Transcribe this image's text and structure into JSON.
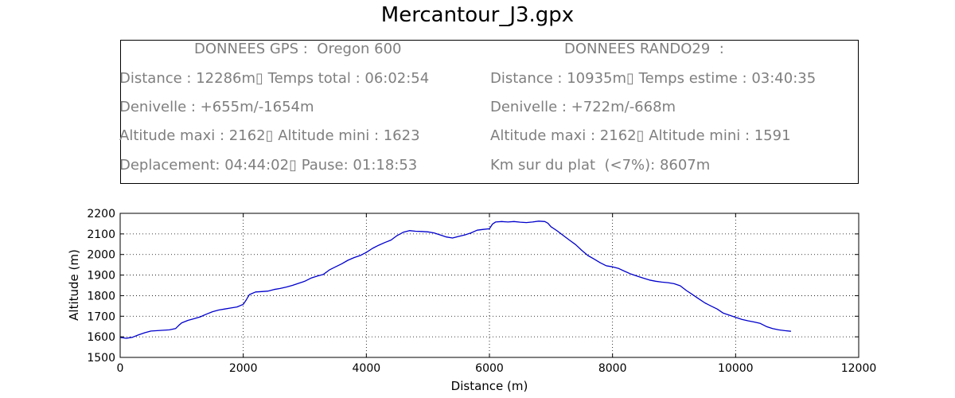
{
  "title": "Mercantour_J3.gpx",
  "info_box": {
    "gps": {
      "header": "DONNEES GPS :  Oregon 600",
      "lines": [
        "Distance : 12286m▯ Temps total : 06:02:54",
        "Denivelle : +655m/-1654m",
        "Altitude maxi : 2162▯ Altitude mini : 1623",
        "Deplacement: 04:44:02▯ Pause: 01:18:53"
      ]
    },
    "rando": {
      "header": "DONNEES RANDO29  :",
      "lines": [
        "Distance : 10935m▯ Temps estime : 03:40:35",
        "Denivelle : +722m/-668m",
        "Altitude maxi : 2162▯ Altitude mini : 1591",
        "Km sur du plat  (<7%): 8607m"
      ]
    }
  },
  "chart_data": {
    "type": "line",
    "xlabel": "Distance (m)",
    "ylabel": "Altitude (m)",
    "xlim": [
      0,
      12000
    ],
    "ylim": [
      1500,
      2200
    ],
    "xticks": [
      0,
      2000,
      4000,
      6000,
      8000,
      10000,
      12000
    ],
    "yticks": [
      1500,
      1600,
      1700,
      1800,
      1900,
      2000,
      2100,
      2200
    ],
    "grid": true,
    "line_color": "#0000cc",
    "series": [
      {
        "x": [
          0,
          100,
          200,
          300,
          400,
          500,
          600,
          700,
          800,
          900,
          950,
          1000,
          1100,
          1200,
          1300,
          1400,
          1500,
          1600,
          1700,
          1800,
          1900,
          2000,
          2050,
          2100,
          2200,
          2300,
          2400,
          2500,
          2600,
          2700,
          2800,
          2900,
          3000,
          3100,
          3200,
          3300,
          3400,
          3500,
          3600,
          3700,
          3800,
          3900,
          4000,
          4100,
          4200,
          4300,
          4400,
          4500,
          4600,
          4700,
          4800,
          4900,
          5000,
          5100,
          5200,
          5300,
          5400,
          5500,
          5600,
          5700,
          5800,
          5900,
          6000,
          6050,
          6100,
          6200,
          6300,
          6400,
          6500,
          6600,
          6700,
          6800,
          6900,
          6950,
          7000,
          7100,
          7200,
          7300,
          7400,
          7500,
          7600,
          7700,
          7800,
          7900,
          8000,
          8100,
          8200,
          8300,
          8400,
          8500,
          8600,
          8700,
          8800,
          8900,
          9000,
          9100,
          9200,
          9300,
          9400,
          9500,
          9600,
          9700,
          9800,
          9900,
          10000,
          10100,
          10200,
          10300,
          10400,
          10500,
          10600,
          10700,
          10800,
          10900
        ],
        "y": [
          1597,
          1593,
          1598,
          1610,
          1620,
          1628,
          1630,
          1632,
          1634,
          1640,
          1655,
          1668,
          1680,
          1688,
          1697,
          1710,
          1722,
          1730,
          1735,
          1740,
          1745,
          1758,
          1780,
          1805,
          1818,
          1820,
          1822,
          1830,
          1835,
          1842,
          1850,
          1860,
          1870,
          1885,
          1895,
          1903,
          1925,
          1940,
          1955,
          1972,
          1985,
          1995,
          2010,
          2030,
          2045,
          2058,
          2070,
          2092,
          2108,
          2116,
          2113,
          2112,
          2110,
          2105,
          2095,
          2085,
          2080,
          2088,
          2095,
          2105,
          2118,
          2122,
          2125,
          2148,
          2158,
          2160,
          2158,
          2160,
          2157,
          2155,
          2158,
          2162,
          2160,
          2152,
          2135,
          2115,
          2092,
          2070,
          2048,
          2020,
          1995,
          1978,
          1960,
          1945,
          1940,
          1932,
          1918,
          1905,
          1895,
          1885,
          1876,
          1870,
          1866,
          1863,
          1858,
          1848,
          1825,
          1805,
          1785,
          1765,
          1750,
          1735,
          1715,
          1705,
          1695,
          1685,
          1678,
          1672,
          1665,
          1650,
          1640,
          1634,
          1630,
          1627
        ]
      }
    ]
  }
}
